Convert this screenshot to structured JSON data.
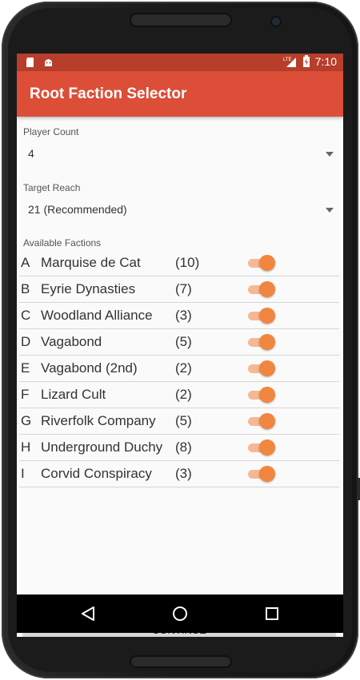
{
  "status_bar": {
    "time": "7:10",
    "network": "LTE",
    "icons": [
      "sd-card-icon",
      "android-icon",
      "lte-signal-icon",
      "battery-charging-icon"
    ]
  },
  "app_bar": {
    "title": "Root Faction Selector"
  },
  "player_count": {
    "label": "Player Count",
    "value": "4"
  },
  "target_reach": {
    "label": "Target Reach",
    "value": "21  (Recommended)"
  },
  "factions_section": {
    "label": "Available Factions"
  },
  "factions": [
    {
      "letter": "A",
      "name": "Marquise de Cat",
      "count": "(10)",
      "enabled": true
    },
    {
      "letter": "B",
      "name": "Eyrie Dynasties",
      "count": "(7)",
      "enabled": true
    },
    {
      "letter": "C",
      "name": "Woodland Alliance",
      "count": "(3)",
      "enabled": true
    },
    {
      "letter": "D",
      "name": "Vagabond",
      "count": "(5)",
      "enabled": true
    },
    {
      "letter": "E",
      "name": "Vagabond (2nd)",
      "count": "(2)",
      "enabled": true
    },
    {
      "letter": "F",
      "name": "Lizard Cult",
      "count": "(2)",
      "enabled": true
    },
    {
      "letter": "G",
      "name": "Riverfolk Company",
      "count": "(5)",
      "enabled": true
    },
    {
      "letter": "H",
      "name": "Underground Duchy",
      "count": "(8)",
      "enabled": true
    },
    {
      "letter": "I",
      "name": "Corvid Conspiracy",
      "count": "(3)",
      "enabled": true
    }
  ],
  "continue_button": {
    "label": "CONTINUE"
  },
  "colors": {
    "status_bar": "#b63e2b",
    "app_bar": "#dc4e37",
    "switch_thumb": "#f0863f",
    "switch_track": "#f6b892"
  }
}
